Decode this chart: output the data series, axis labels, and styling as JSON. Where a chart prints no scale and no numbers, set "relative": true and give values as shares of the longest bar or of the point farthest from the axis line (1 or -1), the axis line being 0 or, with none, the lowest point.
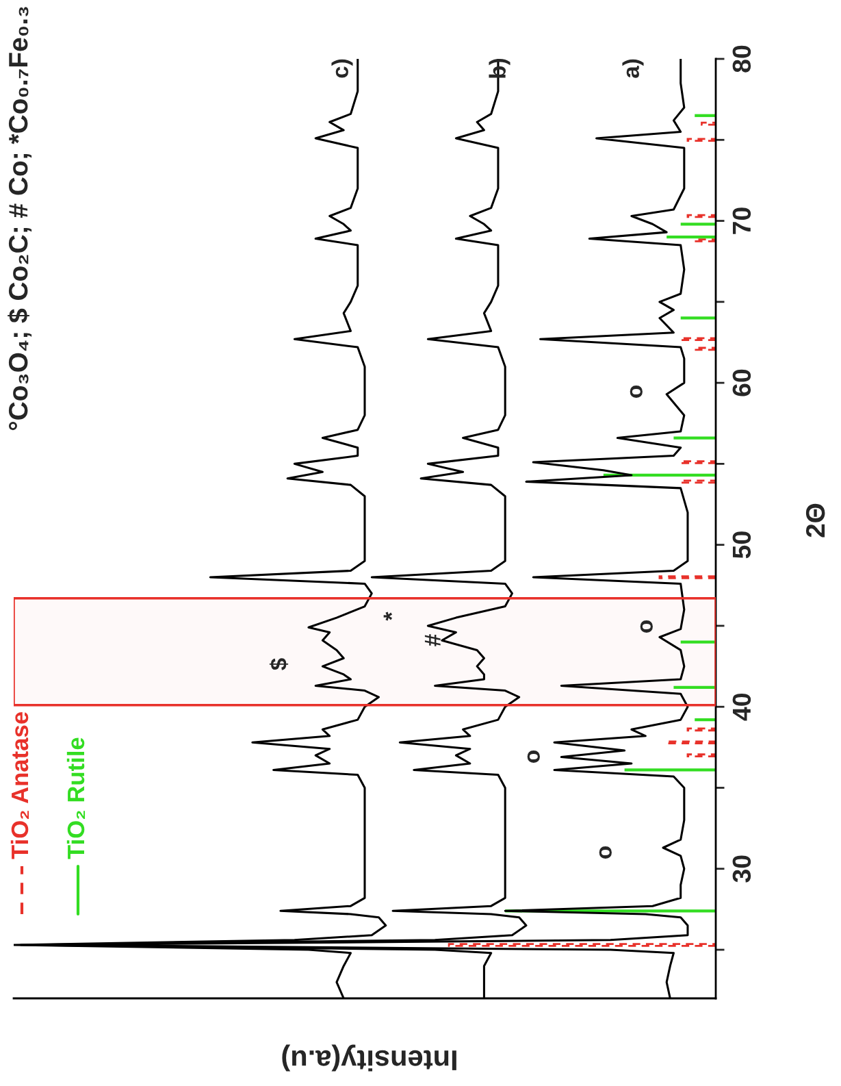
{
  "chart_data": {
    "type": "line",
    "orientation": "horizontal",
    "relative": true,
    "title": "°Co₃O₄; $ Co₂C; # Co; *Co₀.₇Fe₀.₃",
    "ylabel": "2Θ",
    "xlabel": "Intensity(a.u)",
    "ylim": [
      22,
      80
    ],
    "yticks": [
      {
        "value": 25,
        "label": null
      },
      30,
      {
        "value": 35,
        "label": null
      },
      40,
      {
        "value": 45,
        "label": null
      },
      50,
      {
        "value": 55,
        "label": null
      },
      60,
      {
        "value": 65,
        "label": null
      },
      70,
      {
        "value": 75,
        "label": null
      },
      80
    ],
    "grid": false,
    "legend": "bottom left",
    "series": [
      {
        "color": "#000000",
        "x": [
          22,
          23,
          24,
          24.8,
          25.0,
          25.3,
          25.6,
          25.9,
          26.5,
          27.0,
          27.2,
          27.4,
          27.7,
          28.2,
          29,
          30,
          30.8,
          31.3,
          31.8,
          33,
          35,
          35.7,
          36.1,
          36.5,
          36.9,
          37.3,
          37.8,
          38.2,
          38.6,
          39.2,
          40,
          40.8,
          41.3,
          41.7,
          42.5,
          43.5,
          44.3,
          44.8,
          46,
          47.6,
          48.0,
          48.4,
          49,
          50,
          52,
          53.5,
          53.9,
          54.3,
          54.6,
          55.1,
          55.5,
          56.0,
          56.6,
          57.0,
          58,
          59.3,
          60,
          61.5,
          62.2,
          62.7,
          63.1,
          64.0,
          64.5,
          65.0,
          65.5,
          67,
          68.5,
          68.9,
          69.3,
          69.8,
          70.3,
          70.7,
          72,
          74.5,
          75.1,
          75.5,
          76.2,
          77,
          78.5,
          80
        ],
        "values": [
          0.065,
          0.07,
          0.065,
          0.06,
          0.15,
          0.96,
          0.15,
          0.04,
          0.04,
          0.05,
          0.1,
          0.3,
          0.09,
          0.05,
          0.05,
          0.045,
          0.05,
          0.075,
          0.05,
          0.045,
          0.045,
          0.06,
          0.23,
          0.12,
          0.22,
          0.13,
          0.23,
          0.1,
          0.12,
          0.05,
          0.04,
          0.05,
          0.22,
          0.05,
          0.045,
          0.05,
          0.08,
          0.05,
          0.045,
          0.05,
          0.26,
          0.06,
          0.04,
          0.04,
          0.04,
          0.05,
          0.27,
          0.12,
          0.16,
          0.26,
          0.06,
          0.05,
          0.14,
          0.05,
          0.045,
          0.07,
          0.045,
          0.045,
          0.05,
          0.25,
          0.06,
          0.08,
          0.06,
          0.08,
          0.05,
          0.045,
          0.05,
          0.18,
          0.07,
          0.09,
          0.12,
          0.06,
          0.045,
          0.045,
          0.17,
          0.05,
          0.06,
          0.045,
          0.05,
          0.05
        ]
      },
      {
        "color": "#000000",
        "x": [
          22,
          23,
          24,
          24.8,
          25.0,
          25.3,
          25.6,
          25.9,
          26.5,
          27.0,
          27.2,
          27.4,
          27.7,
          28.2,
          29,
          30,
          31,
          32,
          33.5,
          35,
          35.8,
          36.1,
          36.5,
          37.0,
          37.4,
          37.8,
          38.2,
          38.6,
          39.2,
          40,
          40.6,
          41.0,
          41.3,
          41.7,
          42.0,
          42.5,
          43.0,
          43.5,
          44.1,
          44.6,
          45.0,
          45.5,
          46.2,
          47.0,
          47.6,
          48.0,
          48.4,
          49,
          50,
          51.5,
          53,
          53.7,
          54.1,
          54.5,
          55.0,
          55.5,
          56.0,
          56.6,
          57.1,
          58,
          59,
          60,
          61,
          62.2,
          62.7,
          63.2,
          64.3,
          65,
          66,
          67,
          68.5,
          68.9,
          69.4,
          69.8,
          70.3,
          70.8,
          72,
          73,
          74.5,
          75.1,
          75.6,
          76.1,
          76.6,
          78,
          79,
          80
        ],
        "values": [
          0.33,
          0.33,
          0.33,
          0.32,
          0.4,
          0.99,
          0.4,
          0.29,
          0.27,
          0.28,
          0.32,
          0.46,
          0.32,
          0.3,
          0.3,
          0.3,
          0.3,
          0.3,
          0.3,
          0.3,
          0.31,
          0.43,
          0.35,
          0.37,
          0.35,
          0.45,
          0.35,
          0.36,
          0.31,
          0.3,
          0.28,
          0.3,
          0.4,
          0.33,
          0.33,
          0.34,
          0.33,
          0.34,
          0.39,
          0.37,
          0.41,
          0.37,
          0.3,
          0.29,
          0.3,
          0.49,
          0.32,
          0.3,
          0.3,
          0.3,
          0.3,
          0.32,
          0.42,
          0.36,
          0.41,
          0.31,
          0.31,
          0.36,
          0.31,
          0.3,
          0.3,
          0.3,
          0.3,
          0.31,
          0.41,
          0.32,
          0.33,
          0.32,
          0.31,
          0.31,
          0.31,
          0.37,
          0.32,
          0.33,
          0.35,
          0.32,
          0.31,
          0.31,
          0.31,
          0.37,
          0.33,
          0.34,
          0.32,
          0.31,
          0.31,
          0.31
        ]
      },
      {
        "color": "#000000",
        "x": [
          22,
          23,
          24,
          24.8,
          25.0,
          25.3,
          25.6,
          25.9,
          26.5,
          27.0,
          27.2,
          27.4,
          27.7,
          28.2,
          29,
          30,
          31,
          32,
          33.5,
          35,
          35.8,
          36.1,
          36.5,
          37.0,
          37.4,
          37.8,
          38.2,
          38.6,
          39.2,
          40,
          40.6,
          41.0,
          41.3,
          41.7,
          42.0,
          42.5,
          43.0,
          43.5,
          44.1,
          44.6,
          44.9,
          45.5,
          46.2,
          47.0,
          47.6,
          48.0,
          48.4,
          49,
          50,
          51.5,
          53,
          53.7,
          54.1,
          54.5,
          55.0,
          55.5,
          56.0,
          56.6,
          57.1,
          58,
          59,
          60,
          61,
          62.2,
          62.7,
          63.2,
          64.3,
          65,
          66,
          67,
          68.5,
          68.9,
          69.4,
          69.8,
          70.3,
          70.8,
          72,
          73,
          74.5,
          75.1,
          75.6,
          76.1,
          76.6,
          78,
          79,
          80
        ],
        "values": [
          0.53,
          0.54,
          0.53,
          0.52,
          0.58,
          1.0,
          0.6,
          0.49,
          0.47,
          0.48,
          0.52,
          0.62,
          0.52,
          0.5,
          0.5,
          0.5,
          0.5,
          0.5,
          0.5,
          0.5,
          0.51,
          0.63,
          0.55,
          0.57,
          0.55,
          0.66,
          0.55,
          0.56,
          0.51,
          0.5,
          0.48,
          0.5,
          0.57,
          0.52,
          0.53,
          0.56,
          0.53,
          0.54,
          0.56,
          0.55,
          0.58,
          0.54,
          0.5,
          0.49,
          0.5,
          0.72,
          0.52,
          0.5,
          0.5,
          0.5,
          0.5,
          0.52,
          0.61,
          0.56,
          0.6,
          0.51,
          0.51,
          0.56,
          0.51,
          0.5,
          0.5,
          0.5,
          0.5,
          0.51,
          0.6,
          0.52,
          0.53,
          0.52,
          0.51,
          0.51,
          0.51,
          0.57,
          0.52,
          0.53,
          0.55,
          0.52,
          0.51,
          0.51,
          0.51,
          0.57,
          0.53,
          0.55,
          0.52,
          0.51,
          0.51,
          0.51
        ]
      },
      {
        "type": "bar",
        "name": "TiO₂ Anatase",
        "color": "#e8312a",
        "line_style": "dashed",
        "x": [
          25.3,
          37.0,
          37.8,
          38.6,
          48.0,
          53.9,
          55.1,
          62.1,
          62.7,
          68.8,
          70.3,
          75.0,
          76.0
        ],
        "values": [
          0.38,
          0.04,
          0.07,
          0.04,
          0.08,
          0.05,
          0.05,
          0.03,
          0.05,
          0.03,
          0.04,
          0.04,
          0.02
        ]
      },
      {
        "type": "bar",
        "name": "TiO₂ Rutile",
        "color": "#33dd22",
        "line_style": "solid",
        "x": [
          27.4,
          36.1,
          39.2,
          41.2,
          44.0,
          54.3,
          56.6,
          64.0,
          69.0,
          69.8,
          76.5
        ],
        "values": [
          0.3,
          0.13,
          0.03,
          0.06,
          0.05,
          0.16,
          0.06,
          0.05,
          0.07,
          0.05,
          0.03
        ]
      }
    ],
    "bands": [
      {
        "axis": "y",
        "from": 40.1,
        "to": 46.7,
        "color": "#e8312a"
      }
    ],
    "annotations": [
      "a)",
      "b)",
      "c)",
      "o",
      "o",
      "o",
      "o",
      "$",
      "#",
      "*"
    ]
  }
}
